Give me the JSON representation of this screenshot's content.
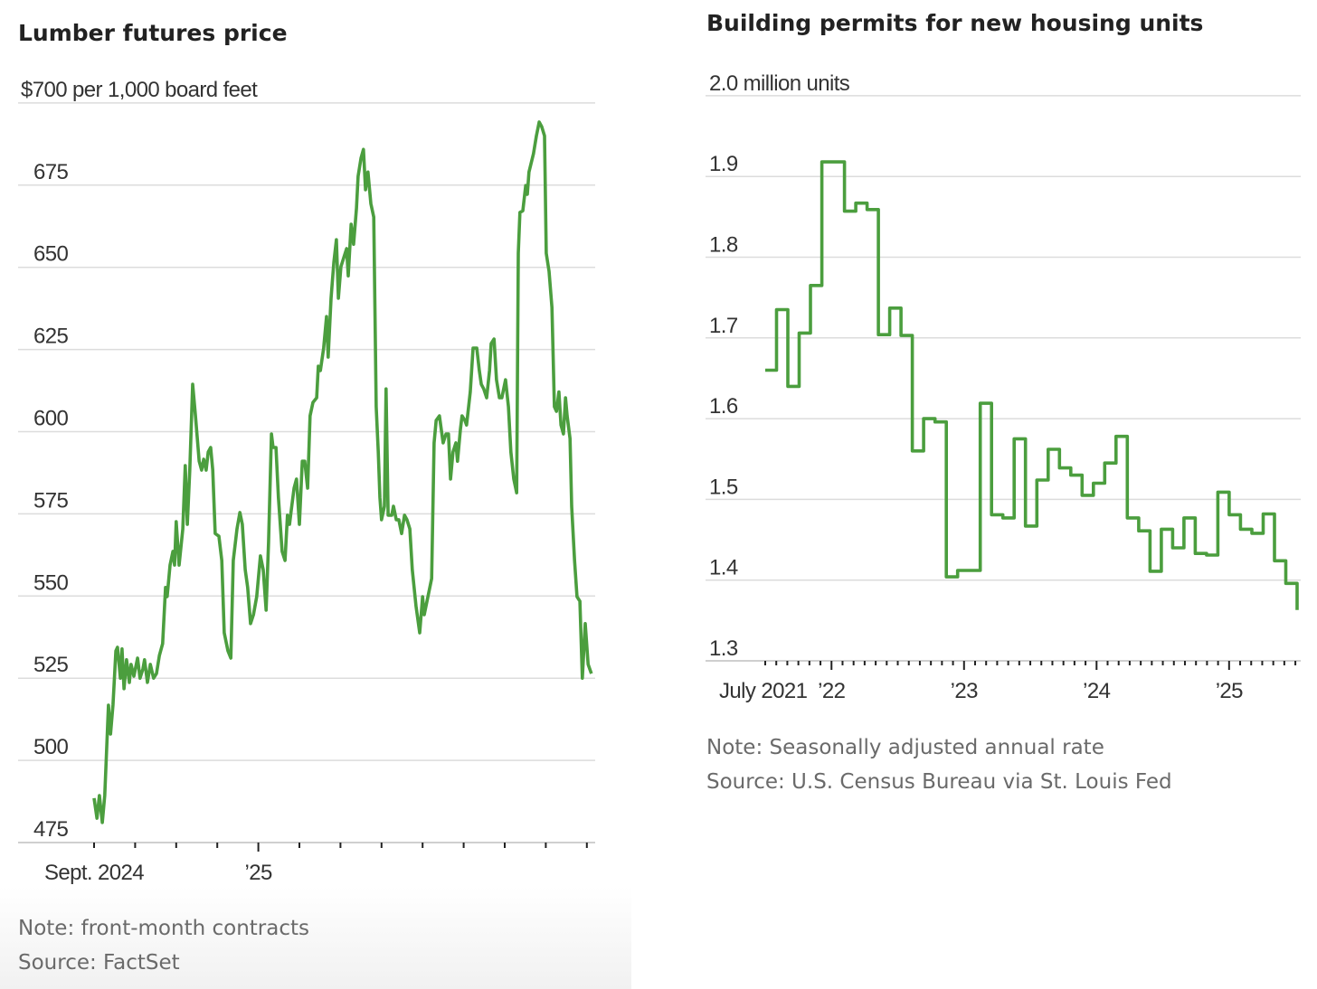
{
  "colors": {
    "series": "#4b9e3e",
    "grid": "#dcdcdc"
  },
  "chart_data": [
    {
      "type": "line",
      "title": "Lumber futures price",
      "ylabel": "$700 per 1,000 board feet",
      "xlabel": "",
      "x_units": "months since Sept. 1, 2024",
      "ylim": [
        475,
        700
      ],
      "yticks": [
        700,
        675,
        650,
        625,
        600,
        575,
        550,
        525,
        500,
        475
      ],
      "ytick_labels": [
        "$700 per 1,000 board feet",
        "675",
        "650",
        "625",
        "600",
        "575",
        "550",
        "525",
        "500",
        "475"
      ],
      "xticks_months": 13,
      "xtick_labels": [
        {
          "month": 0,
          "label": "Sept. 2024"
        },
        {
          "month": 4,
          "label": "’25"
        }
      ],
      "grid": true,
      "note": "Note: front-month contracts",
      "source": "Source: FactSet",
      "x": [
        0,
        0.07,
        0.13,
        0.2,
        0.26,
        0.35,
        0.4,
        0.46,
        0.53,
        0.57,
        0.64,
        0.68,
        0.73,
        0.79,
        0.86,
        0.9,
        0.97,
        1.06,
        1.12,
        1.19,
        1.23,
        1.3,
        1.37,
        1.45,
        1.52,
        1.59,
        1.67,
        1.74,
        1.78,
        1.85,
        1.92,
        1.96,
        2.0,
        2.07,
        2.16,
        2.22,
        2.27,
        2.33,
        2.4,
        2.47,
        2.56,
        2.62,
        2.67,
        2.73,
        2.78,
        2.84,
        2.89,
        2.95,
        3.04,
        3.11,
        3.17,
        3.26,
        3.33,
        3.39,
        3.48,
        3.55,
        3.61,
        3.68,
        3.74,
        3.81,
        3.88,
        3.96,
        4.05,
        4.12,
        4.19,
        4.25,
        4.32,
        4.36,
        4.43,
        4.49,
        4.58,
        4.65,
        4.71,
        4.76,
        4.8,
        4.87,
        4.93,
        5.0,
        5.07,
        5.13,
        5.2,
        5.26,
        5.33,
        5.42,
        5.46,
        5.51,
        5.59,
        5.66,
        5.7,
        5.77,
        5.84,
        5.9,
        5.95,
        6.01,
        6.08,
        6.15,
        6.19,
        6.26,
        6.32,
        6.39,
        6.43,
        6.5,
        6.56,
        6.61,
        6.67,
        6.74,
        6.81,
        6.87,
        6.92,
        6.96,
        7.0,
        7.07,
        7.11,
        7.16,
        7.25,
        7.29,
        7.36,
        7.42,
        7.49,
        7.56,
        7.62,
        7.69,
        7.75,
        7.84,
        7.93,
        8.0,
        8.04,
        8.13,
        8.22,
        8.28,
        8.33,
        8.41,
        8.5,
        8.57,
        8.63,
        8.68,
        8.74,
        8.81,
        8.85,
        8.92,
        8.96,
        9.03,
        9.07,
        9.16,
        9.23,
        9.32,
        9.38,
        9.43,
        9.49,
        9.56,
        9.63,
        9.67,
        9.74,
        9.8,
        9.87,
        9.93,
        10.02,
        10.09,
        10.15,
        10.22,
        10.29,
        10.33,
        10.37,
        10.44,
        10.51,
        10.55,
        10.59,
        10.7,
        10.77,
        10.84,
        10.9,
        10.97,
        11.01,
        11.08,
        11.15,
        11.21,
        11.26,
        11.32,
        11.37,
        11.43,
        11.48,
        11.52,
        11.59,
        11.63,
        11.7,
        11.76,
        11.83,
        11.89,
        11.96,
        12.03,
        12.11
      ],
      "y": [
        488.5,
        482.4,
        489.3,
        481.1,
        489.3,
        516.8,
        508,
        516.8,
        533.3,
        534.4,
        525,
        533.9,
        521.8,
        530.6,
        523.7,
        529.2,
        525.6,
        531.1,
        525,
        527.8,
        530.6,
        523.7,
        529.2,
        525,
        526.4,
        531.9,
        535.5,
        552.6,
        549.8,
        559.4,
        563.6,
        559.4,
        572.6,
        559.4,
        570.4,
        589.7,
        571.8,
        588.3,
        614.4,
        604.8,
        591,
        588.3,
        591.6,
        588.3,
        593.8,
        595.2,
        588.3,
        569,
        568.2,
        560.8,
        538.8,
        533.3,
        531.1,
        560.8,
        570.4,
        575.4,
        571.8,
        558,
        552.6,
        541.6,
        544.3,
        549.8,
        562.2,
        558,
        545.7,
        566.3,
        599.3,
        595.2,
        595.2,
        580,
        563.6,
        560.8,
        574.6,
        571.8,
        575.9,
        582.8,
        585.6,
        571.8,
        591,
        591,
        582.8,
        604.8,
        608.9,
        610.3,
        619.9,
        618.6,
        625.4,
        635,
        622.7,
        640.6,
        651.6,
        658.4,
        640.6,
        650.2,
        652.9,
        655.7,
        647.4,
        663.1,
        657,
        668,
        677.7,
        683.2,
        685.9,
        673.6,
        679,
        669.4,
        665.3,
        607.6,
        593.8,
        580,
        573.2,
        577.3,
        613,
        574.6,
        574.6,
        577.3,
        573.2,
        573.2,
        569,
        574.6,
        573.2,
        570.4,
        558,
        547,
        538.8,
        549.8,
        544.3,
        549.8,
        555.3,
        596.6,
        603.4,
        604.8,
        596.6,
        599.3,
        599.3,
        585.6,
        593.8,
        596.6,
        591,
        600.7,
        604.8,
        603.4,
        602,
        612.1,
        625.4,
        625.4,
        618.6,
        614.4,
        613,
        610.3,
        618.6,
        626.8,
        628.2,
        615.8,
        610.3,
        610.3,
        615.8,
        607.6,
        593.8,
        585.6,
        581.4,
        654.3,
        666.7,
        667.2,
        674.9,
        672.2,
        679,
        684.6,
        690,
        694.2,
        692.8,
        690,
        654.3,
        648.8,
        637.8,
        607.6,
        606.2,
        612.1,
        602,
        599.3,
        610.3,
        604.8,
        597.9,
        577.3,
        560.8,
        549.8,
        548.4,
        525,
        541.6,
        529.2,
        526.4
      ]
    },
    {
      "type": "line",
      "step": true,
      "title": "Building permits for new housing units",
      "ylabel": "2.0 million units",
      "xlabel": "",
      "x_units": "monthly, starting July 2021",
      "ylim": [
        1.3,
        2.0
      ],
      "yticks": [
        2.0,
        1.9,
        1.8,
        1.7,
        1.6,
        1.5,
        1.4,
        1.3
      ],
      "ytick_labels": [
        "2.0 million units",
        "1.9",
        "1.8",
        "1.7",
        "1.6",
        "1.5",
        "1.4",
        "1.3"
      ],
      "xticks_months": 49,
      "xtick_labels": [
        {
          "month": 0,
          "label": "July 2021"
        },
        {
          "month": 6,
          "label": "’22"
        },
        {
          "month": 18,
          "label": "’23"
        },
        {
          "month": 30,
          "label": "’24"
        },
        {
          "month": 42,
          "label": "’25"
        }
      ],
      "grid": true,
      "note": "Note: Seasonally adjusted annual rate",
      "source": "Source: U.S. Census Bureau via St. Louis Fed",
      "categories": [
        "Jul 2021",
        "Aug 2021",
        "Sep 2021",
        "Oct 2021",
        "Nov 2021",
        "Dec 2021",
        "Jan 2022",
        "Feb 2022",
        "Mar 2022",
        "Apr 2022",
        "May 2022",
        "Jun 2022",
        "Jul 2022",
        "Aug 2022",
        "Sep 2022",
        "Oct 2022",
        "Nov 2022",
        "Dec 2022",
        "Jan 2023",
        "Feb 2023",
        "Mar 2023",
        "Apr 2023",
        "May 2023",
        "Jun 2023",
        "Jul 2023",
        "Aug 2023",
        "Sep 2023",
        "Oct 2023",
        "Nov 2023",
        "Dec 2023",
        "Jan 2024",
        "Feb 2024",
        "Mar 2024",
        "Apr 2024",
        "May 2024",
        "Jun 2024",
        "Jul 2024",
        "Aug 2024",
        "Sep 2024",
        "Oct 2024",
        "Nov 2024",
        "Dec 2024",
        "Jan 2025",
        "Feb 2025",
        "Mar 2025",
        "Apr 2025",
        "May 2025",
        "Jun 2025"
      ],
      "values": [
        1.66,
        1.735,
        1.64,
        1.706,
        1.765,
        1.918,
        1.918,
        1.857,
        1.867,
        1.859,
        1.704,
        1.737,
        1.703,
        1.56,
        1.6,
        1.596,
        1.404,
        1.412,
        1.412,
        1.619,
        1.481,
        1.477,
        1.575,
        1.467,
        1.524,
        1.562,
        1.539,
        1.53,
        1.505,
        1.52,
        1.545,
        1.578,
        1.477,
        1.461,
        1.411,
        1.463,
        1.44,
        1.477,
        1.433,
        1.431,
        1.509,
        1.481,
        1.463,
        1.458,
        1.482,
        1.424,
        1.396,
        1.363
      ]
    }
  ]
}
